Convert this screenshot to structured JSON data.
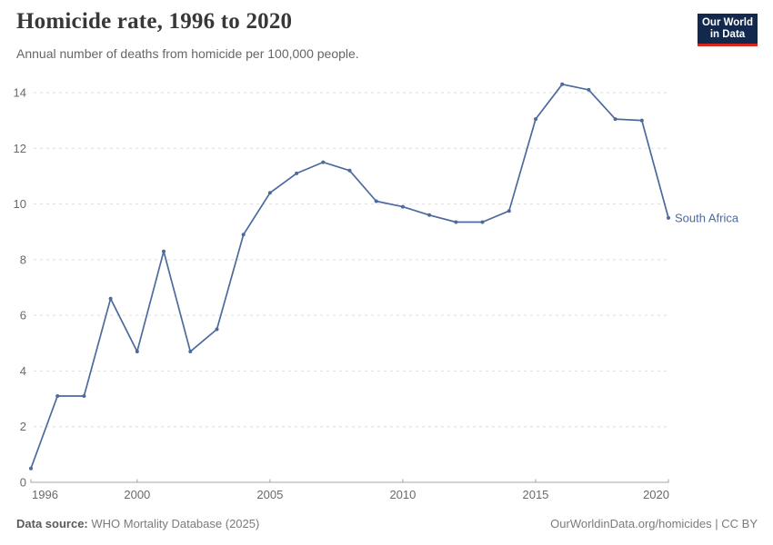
{
  "header": {
    "title": "Homicide rate, 1996 to 2020",
    "subtitle": "Annual number of deaths from homicide per 100,000 people.",
    "logo": {
      "line1": "Our World",
      "line2": "in Data",
      "bg_color": "#12284C",
      "accent_color": "#D7271D"
    }
  },
  "chart_data": {
    "type": "line",
    "title": "Homicide rate, 1996 to 2020",
    "subtitle": "Annual number of deaths from homicide per 100,000 people.",
    "x": [
      1996,
      1997,
      1998,
      1999,
      2000,
      2001,
      2002,
      2003,
      2004,
      2005,
      2006,
      2007,
      2008,
      2009,
      2010,
      2011,
      2012,
      2013,
      2014,
      2015,
      2016,
      2017,
      2018,
      2019,
      2020
    ],
    "series": [
      {
        "name": "South Africa",
        "color": "#4C6A9C",
        "values": [
          0.5,
          3.1,
          3.1,
          6.6,
          4.7,
          8.3,
          4.7,
          5.5,
          8.9,
          10.4,
          11.1,
          11.5,
          11.2,
          10.1,
          9.9,
          9.6,
          9.35,
          9.35,
          9.75,
          13.05,
          14.3,
          14.1,
          13.05,
          13.0,
          9.5
        ]
      }
    ],
    "xlabel": "",
    "ylabel": "",
    "xlim": [
      1996,
      2020
    ],
    "ylim": [
      0,
      14
    ],
    "x_ticks": [
      1996,
      2000,
      2005,
      2010,
      2015,
      2020
    ],
    "y_ticks": [
      0,
      2,
      4,
      6,
      8,
      10,
      12,
      14
    ],
    "grid": "horizontal-dashed",
    "legend_position": "end-of-line-label"
  },
  "footer": {
    "source_label": "Data source:",
    "source_text": " WHO Mortality Database (2025)",
    "right_text": "OurWorldinData.org/homicides | CC BY"
  },
  "colors": {
    "line": "#4C6A9C",
    "grid": "#DEDEDE",
    "axis": "#A5A5A5",
    "tick_label": "#696969",
    "title": "#383838",
    "subtitle": "#666666",
    "footer": "#7B7B7B"
  }
}
